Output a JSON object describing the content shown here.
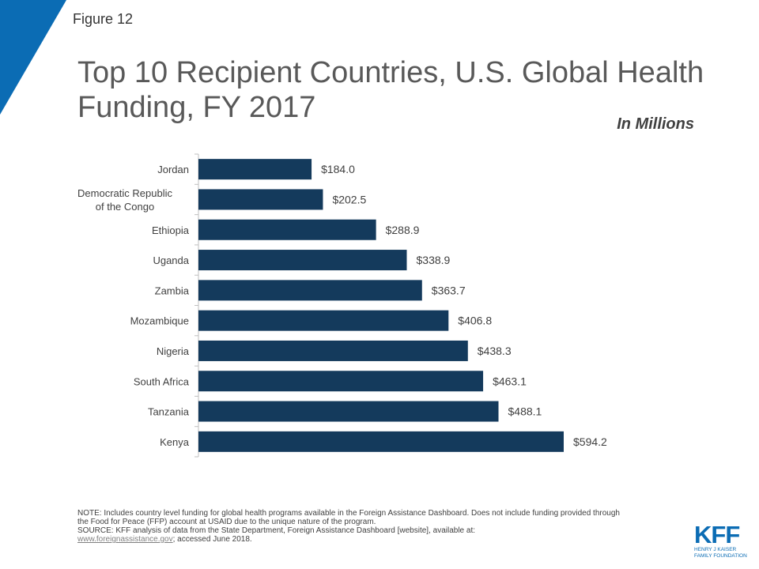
{
  "figure_label": "Figure 12",
  "title": "Top 10 Recipient Countries, U.S. Global Health Funding, FY 2017",
  "units": "In Millions",
  "colors": {
    "bar": "#143a5c",
    "accent": "#0b6cb4",
    "axis": "#bfbfbf"
  },
  "chart_data": {
    "type": "bar",
    "orientation": "horizontal",
    "title": "Top 10 Recipient Countries, U.S. Global Health Funding, FY 2017",
    "xlabel": "",
    "ylabel": "",
    "categories": [
      "Jordan",
      "Democratic Republic of the Congo",
      "Ethiopia",
      "Uganda",
      "Zambia",
      "Mozambique",
      "Nigeria",
      "South Africa",
      "Tanzania",
      "Kenya"
    ],
    "category_lines": [
      [
        "Jordan"
      ],
      [
        "Democratic Republic",
        "of the Congo"
      ],
      [
        "Ethiopia"
      ],
      [
        "Uganda"
      ],
      [
        "Zambia"
      ],
      [
        "Mozambique"
      ],
      [
        "Nigeria"
      ],
      [
        "South Africa"
      ],
      [
        "Tanzania"
      ],
      [
        "Kenya"
      ]
    ],
    "values": [
      184.0,
      202.5,
      288.9,
      338.9,
      363.7,
      406.8,
      438.3,
      463.1,
      488.1,
      594.2
    ],
    "data_labels": [
      "$184.0",
      "$202.5",
      "$288.9",
      "$338.9",
      "$363.7",
      "$406.8",
      "$438.3",
      "$463.1",
      "$488.1",
      "$594.2"
    ],
    "xlim": [
      0,
      594.2
    ],
    "grid": false,
    "legend": "none"
  },
  "notes": {
    "note": "NOTE:  Includes country level funding for global health programs available in the Foreign Assistance Dashboard. Does not include funding provided through the Food for Peace (FFP) account at USAID due to the unique nature of the program.",
    "source_prefix": "SOURCE:  KFF analysis of data from the State Department, Foreign Assistance Dashboard [website], available at:",
    "source_link": "www.foreignassistance.gov",
    "source_suffix": "; accessed June 2018."
  },
  "logo": {
    "mark": "KFF",
    "line1": "HENRY J KAISER",
    "line2": "FAMILY FOUNDATION"
  }
}
